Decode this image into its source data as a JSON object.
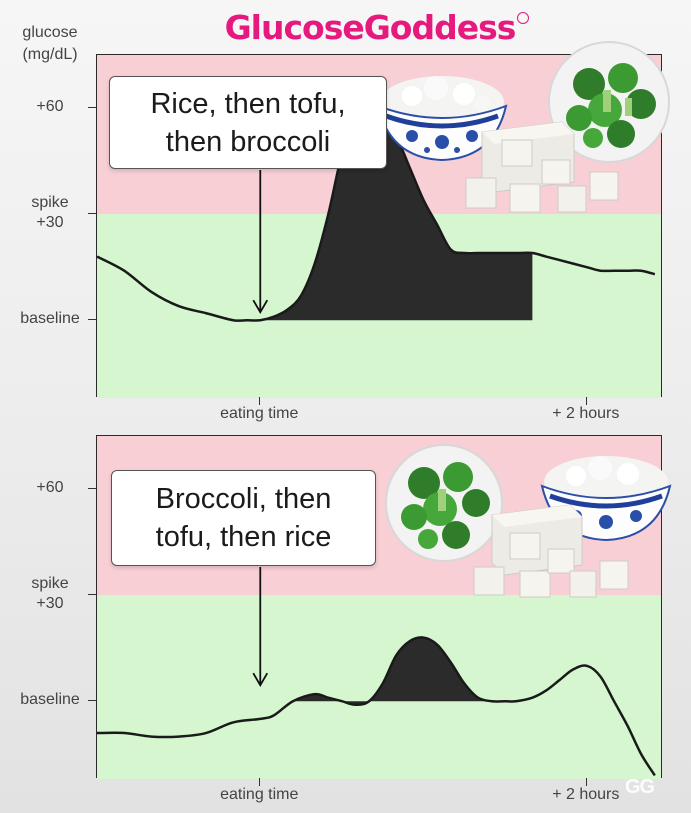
{
  "brand": {
    "name": "GlucoseGoddess",
    "watermark": "GG"
  },
  "y_axis_title": [
    "glucose",
    "(mg/dL)"
  ],
  "colors": {
    "spike_zone": "#f7cfd5",
    "normal_zone": "#d6f6cf",
    "curve": "#1a1a1a",
    "area": "#2b2b2b",
    "brand": "#e5197e"
  },
  "chart_data": [
    {
      "type": "area",
      "title": "",
      "callout": [
        "Rice, then tofu,",
        "then broccoli"
      ],
      "foods": [
        "rice-bowl",
        "tofu",
        "broccoli-bowl"
      ],
      "y_ticks": [
        {
          "label": "+60",
          "value": 60
        },
        {
          "label": [
            "spike",
            "+30"
          ],
          "value": 30
        },
        {
          "label": "baseline",
          "value": 0
        }
      ],
      "x_ticks": [
        {
          "label": "eating time",
          "value": 0
        },
        {
          "label": "+ 2 hours",
          "value": 120
        }
      ],
      "xlim": [
        -60,
        148
      ],
      "ylim": [
        -22,
        75
      ],
      "spike_threshold": 30,
      "fill_range": [
        0,
        102
      ],
      "x": [
        -60,
        -50,
        -40,
        -30,
        -20,
        -10,
        -5,
        0,
        5,
        10,
        15,
        20,
        25,
        30,
        35,
        40,
        45,
        50,
        55,
        60,
        65,
        70,
        75,
        80,
        85,
        90,
        95,
        100,
        105,
        110,
        115,
        120,
        125,
        130,
        135,
        140,
        145
      ],
      "y": [
        18,
        14,
        8,
        4,
        2,
        0,
        0,
        0,
        1,
        3,
        7,
        16,
        30,
        47,
        58,
        60,
        58,
        52,
        43,
        34,
        27,
        20,
        19,
        19,
        19,
        19,
        19,
        19,
        18,
        17,
        16,
        15,
        14,
        14,
        14,
        14,
        13
      ]
    },
    {
      "type": "area",
      "title": "",
      "callout": [
        "Broccoli, then",
        "tofu, then rice"
      ],
      "foods": [
        "broccoli-bowl",
        "tofu",
        "rice-bowl"
      ],
      "y_ticks": [
        {
          "label": "+60",
          "value": 60
        },
        {
          "label": [
            "spike",
            "+30"
          ],
          "value": 30
        },
        {
          "label": "baseline",
          "value": 0
        }
      ],
      "x_ticks": [
        {
          "label": "eating time",
          "value": 0
        },
        {
          "label": "+ 2 hours",
          "value": 120
        }
      ],
      "xlim": [
        -60,
        148
      ],
      "ylim": [
        -22,
        75
      ],
      "spike_threshold": 30,
      "fill_range": [
        12,
        94
      ],
      "x": [
        -60,
        -50,
        -40,
        -30,
        -20,
        -10,
        0,
        5,
        12,
        20,
        25,
        30,
        35,
        40,
        45,
        50,
        55,
        60,
        65,
        70,
        75,
        80,
        85,
        90,
        94,
        100,
        105,
        110,
        115,
        120,
        125,
        130,
        135,
        140,
        145
      ],
      "y": [
        -9,
        -9,
        -10,
        -10,
        -9,
        -6,
        -5,
        -4,
        0,
        2,
        1,
        0,
        -1,
        0,
        5,
        13,
        17,
        18,
        16,
        11,
        5,
        1,
        0,
        0,
        0,
        1,
        3,
        6,
        9,
        10,
        7,
        0,
        -7,
        -15,
        -21
      ]
    }
  ]
}
